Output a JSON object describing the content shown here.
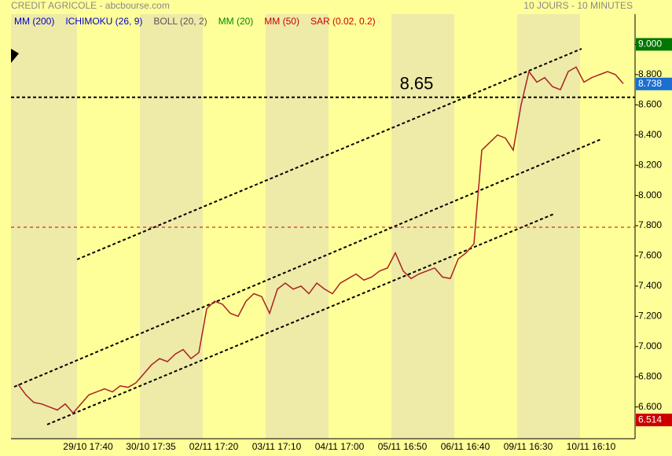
{
  "chart_data": {
    "type": "line",
    "title": "CREDIT AGRICOLE - abcbourse.com",
    "subtitle": "10 JOURS - 10 MINUTES",
    "indicators": [
      {
        "label": "MM (200)",
        "color": "#0000cc"
      },
      {
        "label": "ICHIMOKU (26, 9)",
        "color": "#0000cc"
      },
      {
        "label": "BOLL (20, 2)",
        "color": "#555555"
      },
      {
        "label": "MM (20)",
        "color": "#008800"
      },
      {
        "label": "MM (50)",
        "color": "#cc0000"
      },
      {
        "label": "SAR (0.02, 0.2)",
        "color": "#cc0000"
      }
    ],
    "xticks": [
      "29/10 17:40",
      "30/10 17:35",
      "02/11 17:20",
      "03/11 17:10",
      "04/11 17:00",
      "05/11 16:50",
      "06/11 16:40",
      "09/11 16:30",
      "10/11 16:10"
    ],
    "values": [
      6.75,
      6.68,
      6.63,
      6.62,
      6.6,
      6.58,
      6.62,
      6.56,
      6.62,
      6.68,
      6.7,
      6.72,
      6.7,
      6.74,
      6.73,
      6.76,
      6.82,
      6.88,
      6.92,
      6.9,
      6.95,
      6.98,
      6.92,
      6.96,
      7.25,
      7.3,
      7.28,
      7.22,
      7.2,
      7.3,
      7.35,
      7.33,
      7.22,
      7.38,
      7.42,
      7.38,
      7.4,
      7.35,
      7.42,
      7.38,
      7.35,
      7.42,
      7.45,
      7.48,
      7.44,
      7.46,
      7.5,
      7.52,
      7.62,
      7.5,
      7.45,
      7.48,
      7.5,
      7.52,
      7.46,
      7.45,
      7.58,
      7.62,
      7.68,
      8.3,
      8.35,
      8.4,
      8.38,
      8.3,
      8.6,
      8.82,
      8.75,
      8.78,
      8.72,
      8.7,
      8.82,
      8.85,
      8.75,
      8.78,
      8.8,
      8.82,
      8.8,
      8.74
    ],
    "color": "#aa2222",
    "ylim": [
      6.39,
      9.2
    ],
    "yticks": [
      {
        "value": 6.6,
        "label": "6.600"
      },
      {
        "value": 6.8,
        "label": "6.800"
      },
      {
        "value": 7.0,
        "label": "7.000"
      },
      {
        "value": 7.2,
        "label": "7.200"
      },
      {
        "value": 7.4,
        "label": "7.400"
      },
      {
        "value": 7.6,
        "label": "7.600"
      },
      {
        "value": 7.8,
        "label": "7.800"
      },
      {
        "value": 8.0,
        "label": "8.000"
      },
      {
        "value": 8.2,
        "label": "8.200"
      },
      {
        "value": 8.4,
        "label": "8.400"
      },
      {
        "value": 8.6,
        "label": "8.600"
      },
      {
        "value": 8.8,
        "label": "8.800"
      },
      {
        "value": 9.0,
        "label": "9.000"
      }
    ],
    "hlines": [
      {
        "value": 8.65,
        "label": "8.65",
        "color": "#000000"
      },
      {
        "value": 7.79,
        "color": "#cc0000"
      }
    ],
    "price_markers": [
      {
        "value": 9.0,
        "label": "9.000",
        "color": "#007700"
      },
      {
        "value": 8.738,
        "label": "8.738",
        "color": "#1a6fd0"
      },
      {
        "value": 6.514,
        "label": "6.514",
        "color": "#cc0000"
      }
    ]
  }
}
